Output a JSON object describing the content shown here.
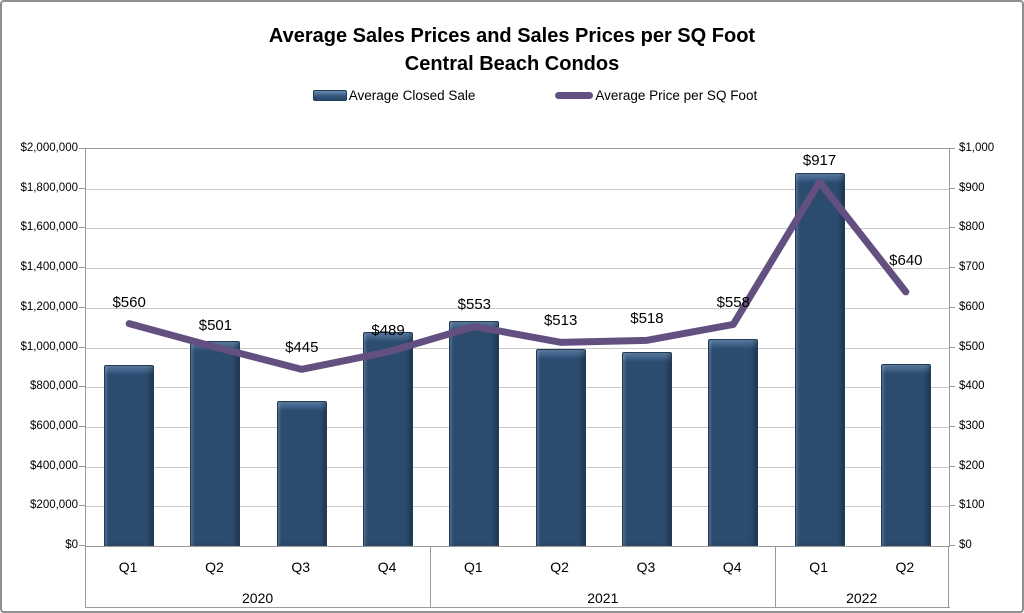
{
  "title": {
    "line1": "Average Sales Prices and Sales Prices per SQ Foot",
    "line2": "Central Beach Condos"
  },
  "legend": {
    "bar_label": "Average Closed Sale",
    "line_label": "Average Price per SQ Foot"
  },
  "colors": {
    "bar": "#2B4B6F",
    "bar_bevel": "#5F81A6",
    "bar_edge": "#1F3C59",
    "line": "#645080",
    "gridline": "#C9C9C9",
    "axis": "#9A9A9A",
    "text": "#000000"
  },
  "chart_data": {
    "type": "combo",
    "categories": [
      "Q1",
      "Q2",
      "Q3",
      "Q4",
      "Q1",
      "Q2",
      "Q3",
      "Q4",
      "Q1",
      "Q2"
    ],
    "year_groups": [
      {
        "label": "2020",
        "count": 4
      },
      {
        "label": "2021",
        "count": 4
      },
      {
        "label": "2022",
        "count": 2
      }
    ],
    "series": [
      {
        "name": "Average Closed Sale",
        "type": "bar",
        "axis": "left",
        "values": [
          910000,
          1035000,
          730000,
          1080000,
          1135000,
          990000,
          975000,
          1045000,
          1880000,
          915000
        ]
      },
      {
        "name": "Average Price per SQ Foot",
        "type": "line",
        "axis": "right",
        "values": [
          560,
          501,
          445,
          489,
          553,
          513,
          518,
          558,
          917,
          640
        ],
        "data_labels": [
          "$560",
          "$501",
          "$445",
          "$489",
          "$553",
          "$513",
          "$518",
          "$558",
          "$917",
          "$640"
        ]
      }
    ],
    "left_axis": {
      "min": 0,
      "max": 2000000,
      "step": 200000,
      "tick_labels": [
        "$0",
        "$200,000",
        "$400,000",
        "$600,000",
        "$800,000",
        "$1,000,000",
        "$1,200,000",
        "$1,400,000",
        "$1,600,000",
        "$1,800,000",
        "$2,000,000"
      ]
    },
    "right_axis": {
      "min": 0,
      "max": 1000,
      "step": 100,
      "tick_labels": [
        "$0",
        "$100",
        "$200",
        "$300",
        "$400",
        "$500",
        "$600",
        "$700",
        "$800",
        "$900",
        "$1,000"
      ]
    },
    "grid": true,
    "legend_position": "top"
  }
}
